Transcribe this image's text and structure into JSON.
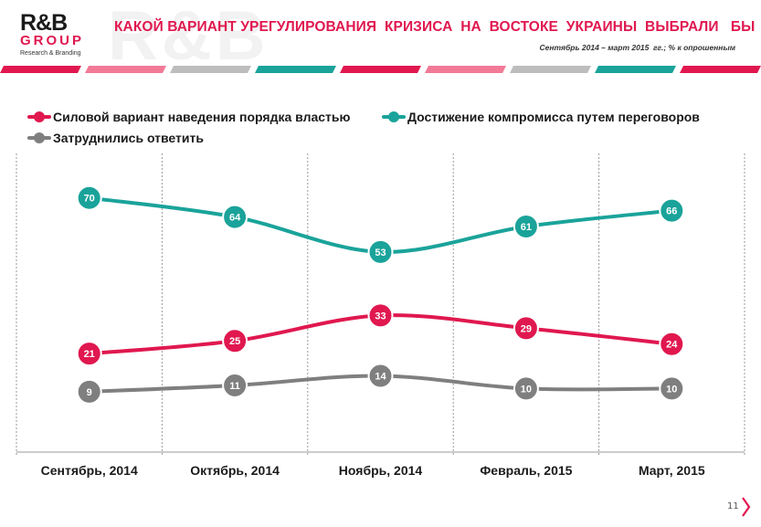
{
  "header": {
    "logo_main": "R&B",
    "logo_group": "GROUP",
    "logo_sub": "Research & Branding",
    "title": "КАКОЙ ВАРИАНТ УРЕГУЛИРОВАНИЯ  КРИЗИСА  НА  ВОСТОКЕ  УКРАИНЫ  ВЫБРАЛИ   БЫ",
    "subtitle": "Сентябрь 2014 – март 2015  гг.; % к опрошенным",
    "stripe_colors": [
      "#e0184f",
      "#f27a96",
      "#bdbdbd",
      "#1aa39a",
      "#e0184f",
      "#f27a96",
      "#bdbdbd",
      "#1aa39a",
      "#e0184f"
    ]
  },
  "legend": {
    "items": [
      {
        "label": "Силовой вариант наведения порядка властью",
        "color": "#e0184f"
      },
      {
        "label": "Достижение компромисса путем переговоров",
        "color": "#1aa39a"
      },
      {
        "label": "Затруднились ответить",
        "color": "#7f7f7f"
      }
    ]
  },
  "chart_data": {
    "type": "line",
    "categories": [
      "Сентябрь, 2014",
      "Октябрь, 2014",
      "Ноябрь, 2014",
      "Февраль, 2015",
      "Март, 2015"
    ],
    "series": [
      {
        "name": "Силовой вариант наведения порядка властью",
        "color": "#e0184f",
        "values": [
          21,
          25,
          33,
          29,
          24
        ]
      },
      {
        "name": "Достижение компромисса путем переговоров",
        "color": "#1aa39a",
        "values": [
          70,
          64,
          53,
          61,
          66
        ]
      },
      {
        "name": "Затруднились ответить",
        "color": "#7f7f7f",
        "values": [
          9,
          11,
          14,
          10,
          10
        ]
      }
    ],
    "ylim": [
      -10,
      84
    ],
    "grid": "vertical dotted",
    "legend_position": "top-left",
    "data_labels": true
  },
  "footer": {
    "page_number": "11",
    "accent_color": "#e0184f"
  }
}
